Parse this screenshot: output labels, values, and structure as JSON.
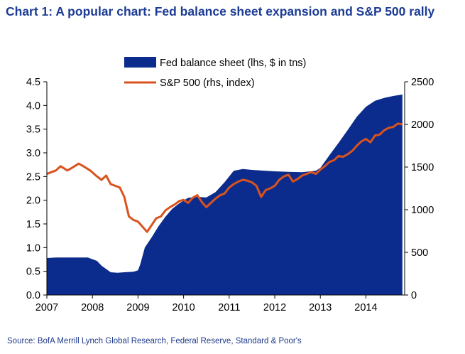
{
  "chart_data": {
    "type": "area+line",
    "title": "Chart 1: A popular chart: Fed balance sheet expansion and S&P 500 rally",
    "source": "Source: BofA Merrill Lynch Global Research, Federal Reserve, Standard & Poor's",
    "x_ticks": [
      "2007",
      "2008",
      "2009",
      "2010",
      "2011",
      "2012",
      "2013",
      "2014"
    ],
    "xlim": [
      2007.0,
      2014.85
    ],
    "y_left": {
      "lim": [
        0,
        4.5
      ],
      "ticks": [
        "0.0",
        "0.5",
        "1.0",
        "1.5",
        "2.0",
        "2.5",
        "3.0",
        "3.5",
        "4.0",
        "4.5"
      ]
    },
    "y_right": {
      "lim": [
        0,
        2500
      ],
      "ticks": [
        "0",
        "500",
        "1000",
        "1500",
        "2000",
        "2500"
      ]
    },
    "grid": false,
    "legend": "top",
    "colors": {
      "fed": "#0b2c8c",
      "spx": "#d9531e",
      "axis": "#000000"
    },
    "series": [
      {
        "name": "Fed balance sheet (lhs, $ in tns)",
        "kind": "area",
        "axis": "left",
        "x": [
          2007.0,
          2007.2,
          2007.5,
          2007.9,
          2008.1,
          2008.2,
          2008.4,
          2008.55,
          2008.7,
          2008.9,
          2009.0,
          2009.05,
          2009.15,
          2009.3,
          2009.45,
          2009.6,
          2009.75,
          2009.9,
          2010.1,
          2010.3,
          2010.5,
          2010.7,
          2010.9,
          2011.1,
          2011.3,
          2011.5,
          2011.8,
          2012.0,
          2012.3,
          2012.6,
          2012.9,
          2013.0,
          2013.2,
          2013.4,
          2013.6,
          2013.8,
          2014.0,
          2014.2,
          2014.4,
          2014.6,
          2014.8
        ],
        "values": [
          0.78,
          0.79,
          0.79,
          0.79,
          0.72,
          0.62,
          0.48,
          0.47,
          0.48,
          0.49,
          0.52,
          0.65,
          1.0,
          1.22,
          1.45,
          1.65,
          1.82,
          1.93,
          2.05,
          2.07,
          2.06,
          2.17,
          2.38,
          2.62,
          2.66,
          2.64,
          2.62,
          2.61,
          2.6,
          2.59,
          2.62,
          2.68,
          2.95,
          3.21,
          3.48,
          3.76,
          3.97,
          4.1,
          4.16,
          4.2,
          4.23
        ]
      },
      {
        "name": "S&P 500 (rhs, index)",
        "kind": "line",
        "axis": "right",
        "x": [
          2007.0,
          2007.1,
          2007.2,
          2007.3,
          2007.45,
          2007.55,
          2007.7,
          2007.8,
          2007.95,
          2008.1,
          2008.2,
          2008.3,
          2008.4,
          2008.5,
          2008.6,
          2008.7,
          2008.8,
          2008.9,
          2009.0,
          2009.1,
          2009.2,
          2009.3,
          2009.4,
          2009.5,
          2009.6,
          2009.7,
          2009.8,
          2009.9,
          2010.0,
          2010.1,
          2010.2,
          2010.3,
          2010.4,
          2010.5,
          2010.6,
          2010.7,
          2010.8,
          2010.9,
          2011.0,
          2011.1,
          2011.2,
          2011.3,
          2011.4,
          2011.5,
          2011.6,
          2011.7,
          2011.8,
          2011.9,
          2012.0,
          2012.1,
          2012.2,
          2012.3,
          2012.4,
          2012.5,
          2012.6,
          2012.7,
          2012.8,
          2012.9,
          2013.0,
          2013.1,
          2013.2,
          2013.3,
          2013.4,
          2013.5,
          2013.6,
          2013.7,
          2013.8,
          2013.9,
          2014.0,
          2014.1,
          2014.2,
          2014.3,
          2014.4,
          2014.5,
          2014.6,
          2014.7,
          2014.8
        ],
        "values": [
          1420,
          1440,
          1460,
          1510,
          1460,
          1490,
          1540,
          1510,
          1460,
          1390,
          1350,
          1400,
          1300,
          1280,
          1260,
          1150,
          920,
          880,
          860,
          800,
          740,
          820,
          900,
          920,
          990,
          1030,
          1060,
          1100,
          1115,
          1080,
          1140,
          1170,
          1090,
          1030,
          1080,
          1130,
          1170,
          1190,
          1260,
          1300,
          1330,
          1350,
          1340,
          1320,
          1280,
          1150,
          1230,
          1250,
          1280,
          1350,
          1390,
          1410,
          1330,
          1360,
          1400,
          1420,
          1440,
          1420,
          1470,
          1510,
          1560,
          1580,
          1630,
          1620,
          1650,
          1690,
          1750,
          1800,
          1830,
          1790,
          1870,
          1880,
          1930,
          1960,
          1970,
          2010,
          2000
        ]
      }
    ]
  }
}
